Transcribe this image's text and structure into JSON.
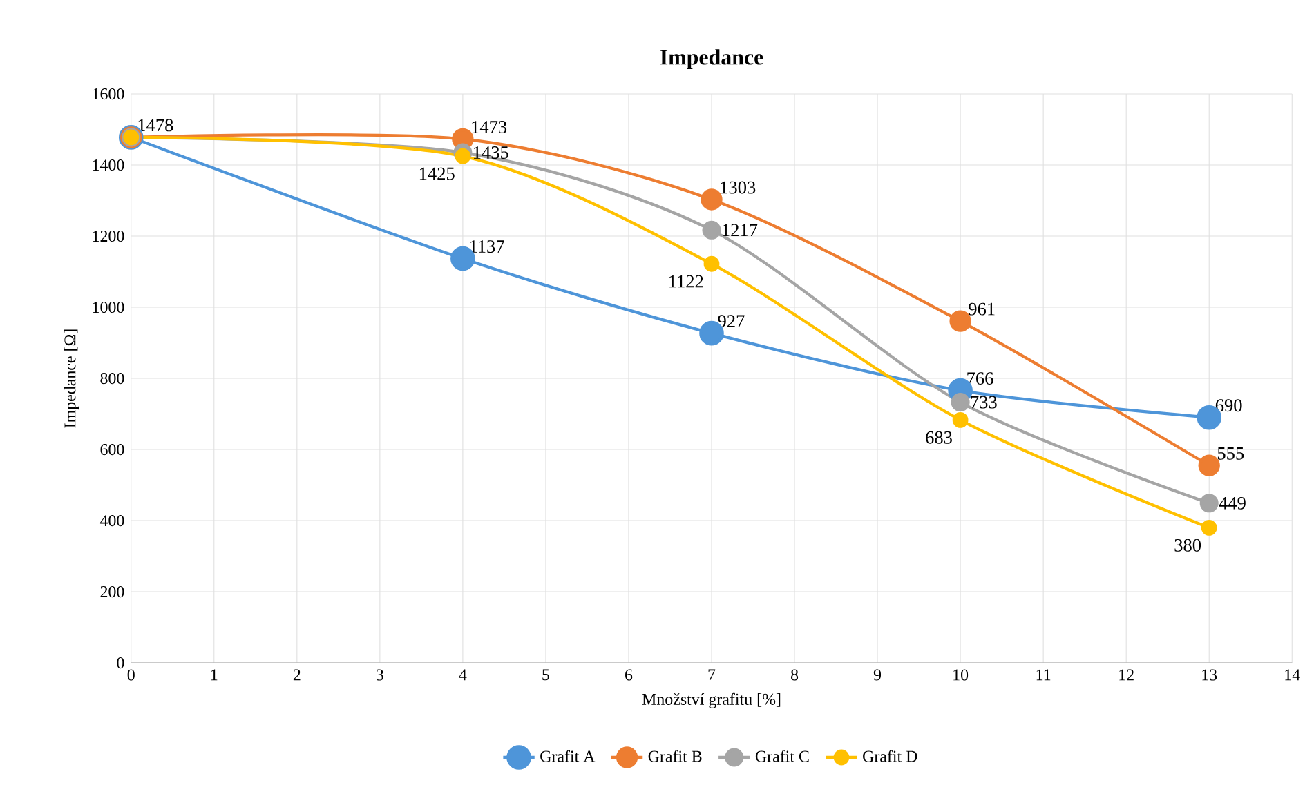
{
  "chart_data": {
    "type": "line",
    "title": "Impedance",
    "xlabel": "Množství grafitu [%]",
    "ylabel": "Impedance [Ω]",
    "x": [
      0,
      4,
      7,
      10,
      13
    ],
    "series": [
      {
        "name": "Grafit A",
        "color": "#4e95d9",
        "values": [
          1478,
          1137,
          927,
          766,
          690
        ],
        "value_labels": [
          "1478",
          "1137",
          "927",
          "766",
          "690"
        ]
      },
      {
        "name": "Grafit B",
        "color": "#ed7d31",
        "values": [
          1478,
          1473,
          1303,
          961,
          555
        ],
        "value_labels": [
          null,
          "1473",
          "1303",
          "961",
          "555"
        ]
      },
      {
        "name": "Grafit C",
        "color": "#a5a5a5",
        "values": [
          1478,
          1435,
          1217,
          733,
          449
        ],
        "value_labels": [
          null,
          "1435",
          "1217",
          "733",
          "449"
        ]
      },
      {
        "name": "Grafit D",
        "color": "#ffc000",
        "values": [
          1478,
          1425,
          1122,
          683,
          380
        ],
        "value_labels": [
          null,
          "1425",
          "1122",
          "683",
          "380"
        ]
      }
    ],
    "xlim": [
      0,
      14
    ],
    "xticks": [
      0,
      1,
      2,
      3,
      4,
      5,
      6,
      7,
      8,
      9,
      10,
      11,
      12,
      13,
      14
    ],
    "ylim": [
      0,
      1600
    ],
    "yticks": [
      0,
      200,
      400,
      600,
      800,
      1000,
      1200,
      1400,
      1600
    ],
    "grid": true,
    "legend": "bottom",
    "marker": "circle",
    "line_style": "solid"
  }
}
